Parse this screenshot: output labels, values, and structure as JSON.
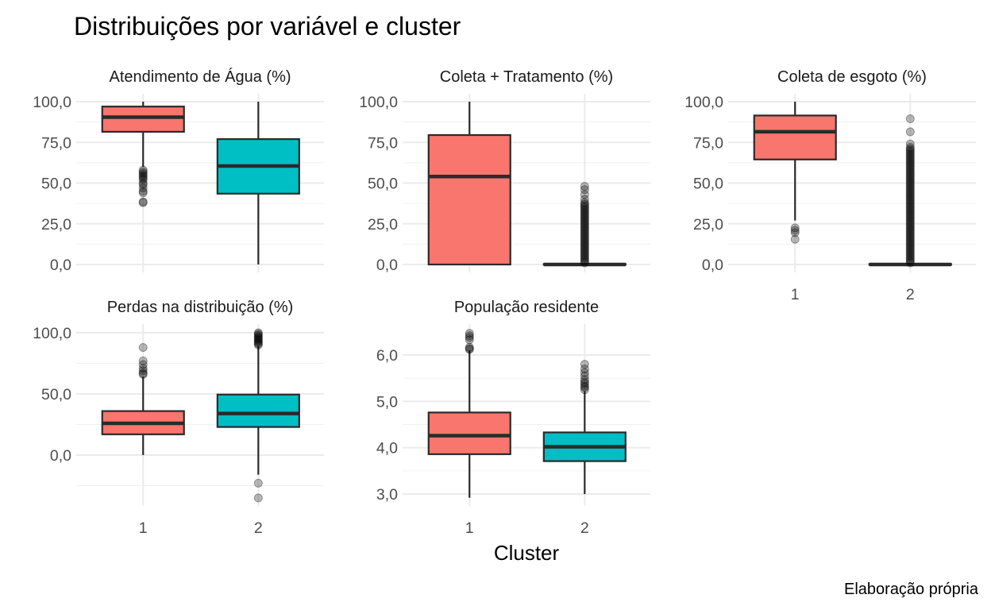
{
  "title": "Distribuições por variável e cluster",
  "xlabel": "Cluster",
  "caption": "Elaboração própria",
  "colors": {
    "cluster1": "#F8766D",
    "cluster2": "#00BFC4"
  },
  "chart_data": [
    {
      "type": "boxplot",
      "title": "Atendimento de Água (%)",
      "categories": [
        "1",
        "2"
      ],
      "ylim": [
        0,
        100
      ],
      "yticks": [
        0,
        25,
        50,
        75,
        100
      ],
      "ytick_labels": [
        "0,0",
        "25,0",
        "50,0",
        "75,0",
        "100,0"
      ],
      "boxes": [
        {
          "cluster": "1",
          "whisker_low": 60,
          "q1": 81.5,
          "median": 90.5,
          "q3": 97,
          "whisker_high": 100,
          "outliers": [
            38,
            38.5,
            44,
            45,
            47,
            49,
            50,
            52,
            53,
            54,
            55,
            56,
            57,
            58
          ]
        },
        {
          "cluster": "2",
          "whisker_low": 0,
          "q1": 43.5,
          "median": 60.5,
          "q3": 77,
          "whisker_high": 100,
          "outliers": []
        }
      ]
    },
    {
      "type": "boxplot",
      "title": "Coleta + Tratamento (%)",
      "categories": [
        "1",
        "2"
      ],
      "ylim": [
        0,
        100
      ],
      "yticks": [
        0,
        25,
        50,
        75,
        100
      ],
      "ytick_labels": [
        "0,0",
        "25,0",
        "50,0",
        "75,0",
        "100,0"
      ],
      "boxes": [
        {
          "cluster": "1",
          "whisker_low": 0,
          "q1": 0,
          "median": 54,
          "q3": 79.5,
          "whisker_high": 100,
          "outliers": []
        },
        {
          "cluster": "2",
          "whisker_low": 0,
          "q1": 0,
          "median": 0,
          "q3": 0.3,
          "whisker_high": 0.5,
          "outliers": [
            1,
            2,
            3,
            4,
            5,
            6,
            7,
            8,
            9,
            10,
            11,
            12,
            13,
            14,
            15,
            16,
            17,
            18,
            19,
            20,
            21,
            22,
            23,
            24,
            25,
            26,
            27,
            28,
            29,
            30,
            31,
            32,
            33,
            34,
            35,
            36,
            37,
            38,
            40,
            43,
            46,
            48
          ]
        }
      ]
    },
    {
      "type": "boxplot",
      "title": "Coleta de esgoto (%)",
      "categories": [
        "1",
        "2"
      ],
      "ylim": [
        0,
        100
      ],
      "yticks": [
        0,
        25,
        50,
        75,
        100
      ],
      "ytick_labels": [
        "0,0",
        "25,0",
        "50,0",
        "75,0",
        "100,0"
      ],
      "boxes": [
        {
          "cluster": "1",
          "whisker_low": 27,
          "q1": 64.5,
          "median": 81.5,
          "q3": 91.5,
          "whisker_high": 100,
          "outliers": [
            15.5,
            19.5,
            21,
            22.5
          ]
        },
        {
          "cluster": "2",
          "whisker_low": 0,
          "q1": 0,
          "median": 0,
          "q3": 0.3,
          "whisker_high": 0.5,
          "outliers": [
            1,
            2,
            3,
            4,
            5,
            6,
            7,
            8,
            9,
            10,
            11,
            12,
            13,
            14,
            15,
            16,
            17,
            18,
            19,
            20,
            21,
            22,
            23,
            24,
            25,
            26,
            27,
            28,
            29,
            30,
            31,
            32,
            33,
            34,
            35,
            36,
            37,
            38,
            39,
            40,
            41,
            42,
            43,
            44,
            45,
            46,
            47,
            48,
            49,
            50,
            51,
            52,
            53,
            54,
            55,
            56,
            57,
            58,
            59,
            60,
            61,
            62,
            63,
            64,
            65,
            66,
            67,
            68,
            69,
            70,
            71,
            72,
            74,
            81.5,
            89.5
          ]
        }
      ]
    },
    {
      "type": "boxplot",
      "title": "Perdas na distribuição (%)",
      "categories": [
        "1",
        "2"
      ],
      "ylim": [
        -30,
        102
      ],
      "yticks": [
        0,
        50,
        100
      ],
      "ytick_labels": [
        "0,0",
        "50,0",
        "100,0"
      ],
      "boxes": [
        {
          "cluster": "1",
          "whisker_low": 0,
          "q1": 17,
          "median": 26,
          "q3": 36,
          "whisker_high": 64,
          "outliers": [
            66,
            67,
            69,
            71,
            74,
            77,
            88
          ]
        },
        {
          "cluster": "2",
          "whisker_low": -16,
          "q1": 23,
          "median": 34,
          "q3": 49.5,
          "whisker_high": 89,
          "outliers": [
            -23,
            -35,
            90,
            91,
            92,
            93,
            94,
            95,
            96,
            97,
            98,
            99,
            100
          ]
        }
      ]
    },
    {
      "type": "boxplot",
      "title": "População residente",
      "categories": [
        "1",
        "2"
      ],
      "ylim": [
        2.95,
        6.5
      ],
      "yticks": [
        3,
        4,
        5,
        6
      ],
      "ytick_labels": [
        "3,0",
        "4,0",
        "5,0",
        "6,0"
      ],
      "boxes": [
        {
          "cluster": "1",
          "whisker_low": 2.92,
          "q1": 3.86,
          "median": 4.26,
          "q3": 4.76,
          "whisker_high": 6.1,
          "outliers": [
            6.12,
            6.14,
            6.17,
            6.33,
            6.38,
            6.42,
            6.47
          ]
        },
        {
          "cluster": "2",
          "whisker_low": 3.0,
          "q1": 3.71,
          "median": 4.02,
          "q3": 4.33,
          "whisker_high": 5.22,
          "outliers": [
            5.25,
            5.3,
            5.33,
            5.38,
            5.42,
            5.47,
            5.55,
            5.62,
            5.7,
            5.8
          ]
        }
      ]
    }
  ]
}
